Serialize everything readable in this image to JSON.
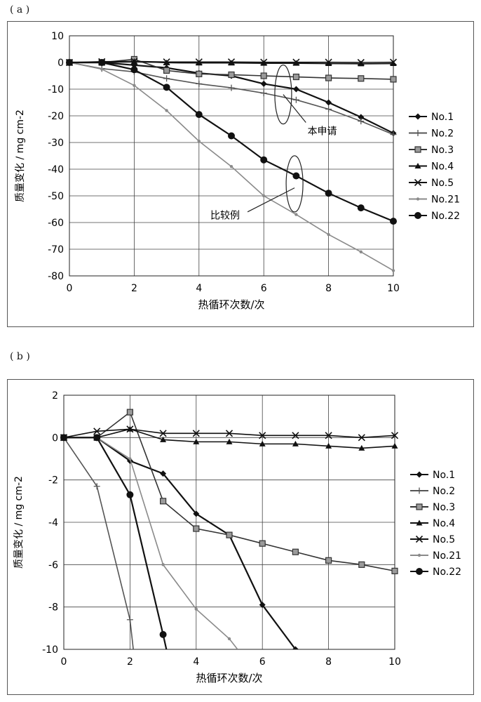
{
  "panels": [
    {
      "label": "( a )"
    },
    {
      "label": "( b )"
    }
  ],
  "chart_data": [
    {
      "type": "line",
      "title": "",
      "xlabel": "热循环次数/次",
      "ylabel": "质量变化 / mg cm-2",
      "xlim": [
        0,
        10
      ],
      "ylim": [
        -80,
        10
      ],
      "x_ticks": [
        0,
        2,
        4,
        6,
        8,
        10
      ],
      "y_ticks": [
        10,
        0,
        -10,
        -20,
        -30,
        -40,
        -50,
        -60,
        -70,
        -80
      ],
      "grid": true,
      "legend_position": "right",
      "annotations": [
        "本申请",
        "比较例"
      ],
      "series": [
        {
          "name": "No.1",
          "marker": "diamond",
          "color": "#111111",
          "x": [
            0,
            1,
            2,
            3,
            4,
            5,
            6,
            7,
            8,
            9,
            10
          ],
          "y": [
            0,
            0,
            -1,
            -2,
            -4,
            -5,
            -8,
            -10,
            -15,
            -20.5,
            -26.5
          ]
        },
        {
          "name": "No.2",
          "marker": "plus",
          "color": "#555555",
          "x": [
            0,
            1,
            2,
            3,
            4,
            5,
            6,
            7,
            8,
            9,
            10
          ],
          "y": [
            0,
            -2.3,
            -3.5,
            -6,
            -8,
            -9.5,
            -11.5,
            -14,
            -17.5,
            -22,
            -27
          ]
        },
        {
          "name": "No.3",
          "marker": "square",
          "color": "#333333",
          "x": [
            0,
            1,
            2,
            3,
            4,
            5,
            6,
            7,
            8,
            9,
            10
          ],
          "y": [
            0,
            0,
            1.2,
            -3,
            -4.3,
            -4.6,
            -5,
            -5.4,
            -5.8,
            -6,
            -6.3
          ]
        },
        {
          "name": "No.4",
          "marker": "triangle",
          "color": "#111111",
          "x": [
            0,
            1,
            2,
            3,
            4,
            5,
            6,
            7,
            8,
            9,
            10
          ],
          "y": [
            0,
            0,
            0.4,
            -0.1,
            -0.2,
            -0.2,
            -0.3,
            -0.3,
            -0.4,
            -0.5,
            -0.4
          ]
        },
        {
          "name": "No.5",
          "marker": "x",
          "color": "#111111",
          "x": [
            0,
            1,
            2,
            3,
            4,
            5,
            6,
            7,
            8,
            9,
            10
          ],
          "y": [
            0,
            0.3,
            0.4,
            0.2,
            0.2,
            0.2,
            0.1,
            0.1,
            0.1,
            0,
            0.1
          ]
        },
        {
          "name": "No.21",
          "marker": "dot",
          "color": "#8a8a8a",
          "x": [
            0,
            1,
            2,
            3,
            4,
            5,
            6,
            7,
            8,
            9,
            10
          ],
          "y": [
            0,
            -2.5,
            -8.6,
            -18,
            -29.5,
            -39,
            -50,
            -57,
            -64.5,
            -71,
            -78
          ]
        },
        {
          "name": "No.22",
          "marker": "circle",
          "color": "#111111",
          "x": [
            0,
            1,
            2,
            3,
            4,
            5,
            6,
            7,
            8,
            9,
            10
          ],
          "y": [
            0,
            0,
            -2.7,
            -9.3,
            -19.5,
            -27.5,
            -36.5,
            -42.5,
            -49,
            -54.5,
            -59.5
          ]
        }
      ]
    },
    {
      "type": "line",
      "title": "",
      "xlabel": "热循环次数/次",
      "ylabel": "质量变化 / mg cm-2",
      "xlim": [
        0,
        10
      ],
      "ylim": [
        -10,
        2
      ],
      "x_ticks": [
        0,
        2,
        4,
        6,
        8,
        10
      ],
      "y_ticks": [
        2,
        0,
        -2,
        -4,
        -6,
        -8,
        -10
      ],
      "grid": true,
      "legend_position": "right",
      "annotations": [],
      "series": [
        {
          "name": "No.1",
          "marker": "diamond",
          "color": "#111111",
          "x": [
            0,
            1,
            2,
            3,
            4,
            5,
            6,
            7
          ],
          "y": [
            0,
            0,
            -1.1,
            -1.7,
            -3.6,
            -4.6,
            -7.9,
            -10
          ]
        },
        {
          "name": "No.2",
          "marker": "plus",
          "color": "#555555",
          "x": [
            0,
            1,
            2,
            2.1
          ],
          "y": [
            0,
            -2.3,
            -8.6,
            -10
          ]
        },
        {
          "name": "No.3",
          "marker": "square",
          "color": "#333333",
          "x": [
            0,
            1,
            2,
            3,
            4,
            5,
            6,
            7,
            8,
            9,
            10
          ],
          "y": [
            0,
            0,
            1.2,
            -3,
            -4.3,
            -4.6,
            -5,
            -5.4,
            -5.8,
            -6,
            -6.3
          ]
        },
        {
          "name": "No.4",
          "marker": "triangle",
          "color": "#111111",
          "x": [
            0,
            1,
            2,
            3,
            4,
            5,
            6,
            7,
            8,
            9,
            10
          ],
          "y": [
            0,
            0,
            0.4,
            -0.1,
            -0.2,
            -0.2,
            -0.3,
            -0.3,
            -0.4,
            -0.5,
            -0.4
          ]
        },
        {
          "name": "No.5",
          "marker": "x",
          "color": "#111111",
          "x": [
            0,
            1,
            2,
            3,
            4,
            5,
            6,
            7,
            8,
            9,
            10
          ],
          "y": [
            0,
            0.3,
            0.4,
            0.2,
            0.2,
            0.2,
            0.1,
            0.1,
            0.1,
            0,
            0.1
          ]
        },
        {
          "name": "No.21",
          "marker": "dot",
          "color": "#8a8a8a",
          "x": [
            0,
            1,
            2,
            3,
            4,
            5,
            5.25
          ],
          "y": [
            0,
            0,
            -1,
            -6,
            -8.1,
            -9.5,
            -10
          ]
        },
        {
          "name": "No.22",
          "marker": "circle",
          "color": "#111111",
          "x": [
            0,
            1,
            2,
            3,
            3.1
          ],
          "y": [
            0,
            0,
            -2.7,
            -9.3,
            -10
          ]
        }
      ]
    }
  ]
}
